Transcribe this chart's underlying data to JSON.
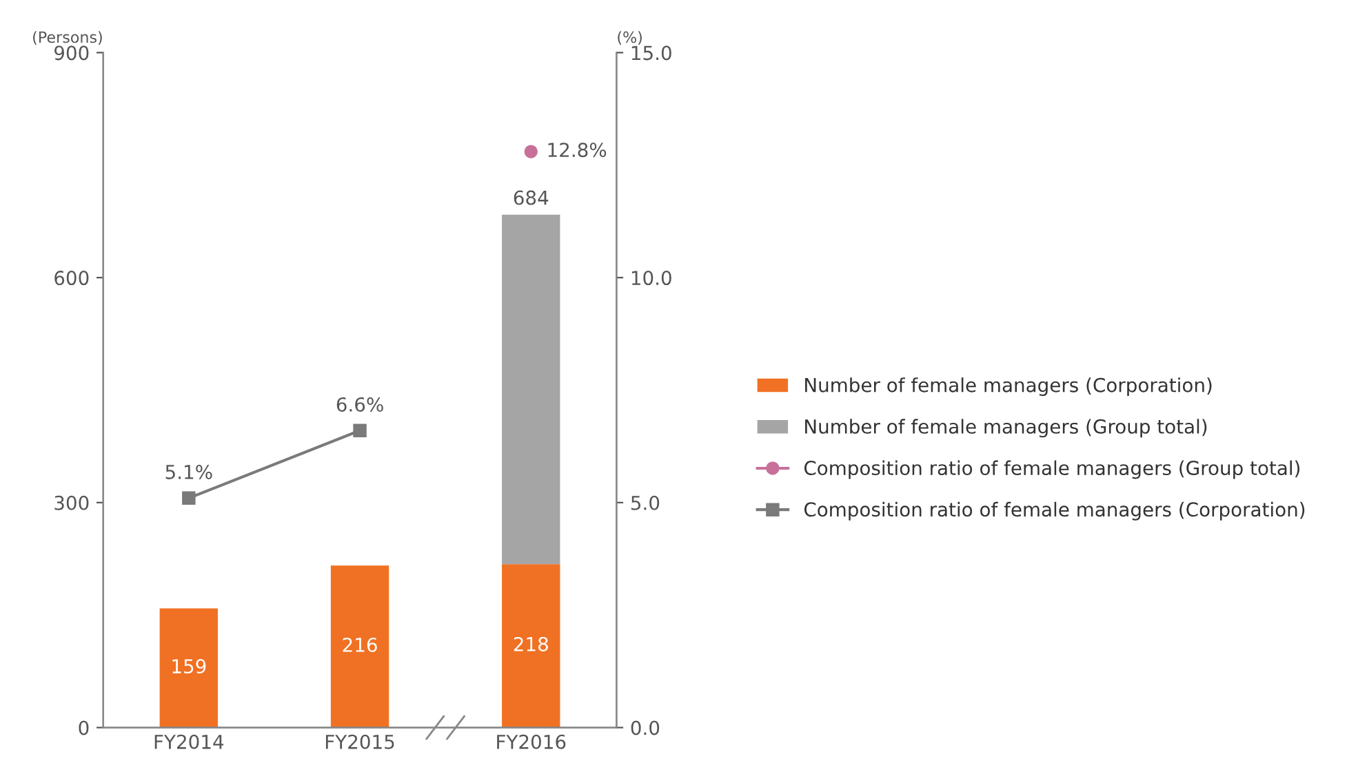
{
  "chart_data": {
    "type": "bar",
    "stacked": true,
    "categories": [
      "FY2014",
      "FY2015",
      "FY2016"
    ],
    "ylabel": "(Persons)",
    "y2label": "(%)",
    "ylim": [
      0,
      900
    ],
    "yticks": [
      0,
      300,
      600,
      900
    ],
    "y2lim": [
      0,
      15
    ],
    "y2ticks": [
      {
        "value": 0,
        "label": "0.0"
      },
      {
        "value": 5,
        "label": "5.0"
      },
      {
        "value": 10,
        "label": "10.0"
      },
      {
        "value": 15,
        "label": "15.0"
      }
    ],
    "series": [
      {
        "name": "Number of female managers (Corporation)",
        "color": "#f07123",
        "values": [
          159,
          216,
          218
        ],
        "value_labels": [
          "159",
          "216",
          "218"
        ]
      },
      {
        "name": "Number of female managers (Group total)",
        "color": "#a5a5a5",
        "values": [
          null,
          null,
          466
        ]
      },
      {
        "name": "Composition ratio of female managers (Group total)",
        "type": "line",
        "axis": "y2",
        "color": "#c8709a",
        "marker": "circle",
        "values": [
          null,
          null,
          12.8
        ],
        "value_labels": [
          null,
          null,
          "12.8%"
        ]
      },
      {
        "name": "Composition ratio of female managers (Corporation)",
        "type": "line",
        "axis": "y2",
        "color": "#7a7a7a",
        "marker": "square",
        "values": [
          5.1,
          6.6,
          null
        ],
        "value_labels": [
          "5.1%",
          "6.6%",
          null
        ]
      }
    ],
    "totals": [
      null,
      null,
      "684"
    ],
    "legend": "right",
    "grid": false
  }
}
